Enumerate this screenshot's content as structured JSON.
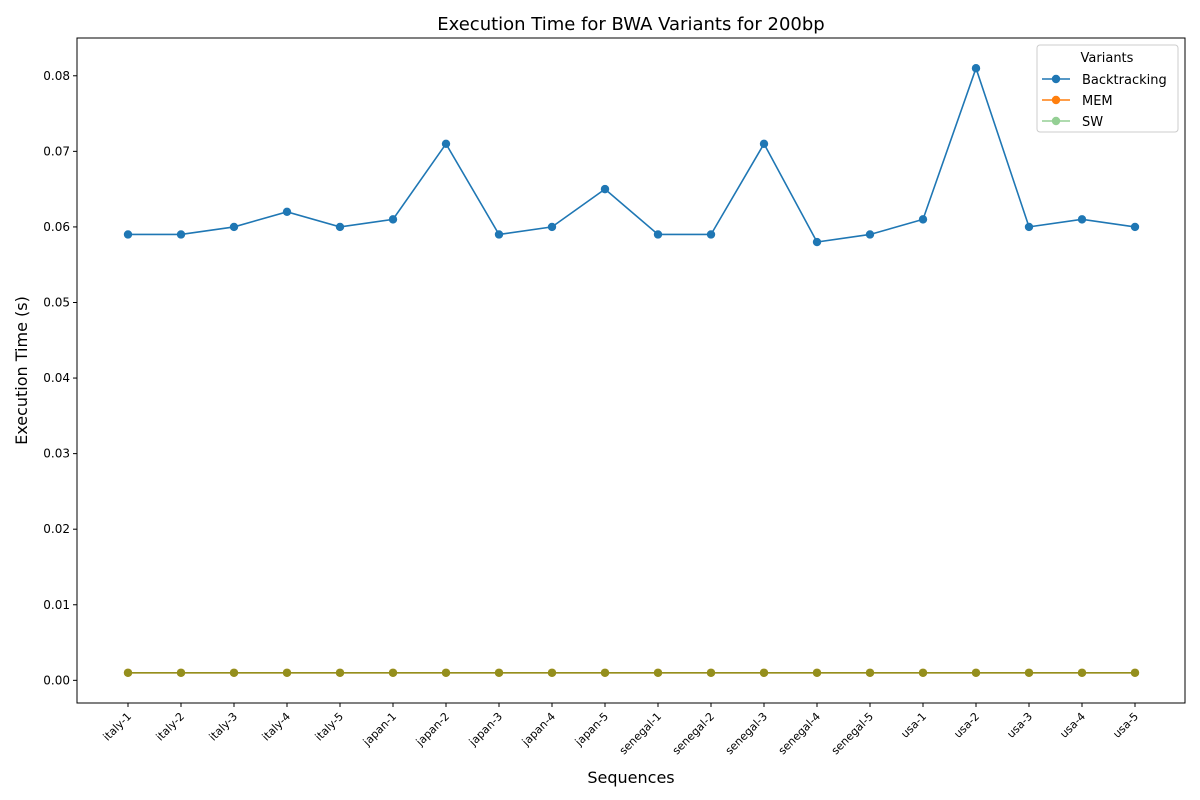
{
  "chart_data": {
    "type": "line",
    "title": "Execution Time for BWA Variants for 200bp",
    "xlabel": "Sequences",
    "ylabel": "Execution Time (s)",
    "ylim": [
      -0.003,
      0.085
    ],
    "yticks": [
      "0.00",
      "0.01",
      "0.02",
      "0.03",
      "0.04",
      "0.05",
      "0.06",
      "0.07",
      "0.08"
    ],
    "grid": false,
    "legend": {
      "title": "Variants",
      "placement": "top-right"
    },
    "categories": [
      "italy-1",
      "italy-2",
      "italy-3",
      "italy-4",
      "italy-5",
      "japan-1",
      "japan-2",
      "japan-3",
      "japan-4",
      "japan-5",
      "senegal-1",
      "senegal-2",
      "senegal-3",
      "senegal-4",
      "senegal-5",
      "usa-1",
      "usa-2",
      "usa-3",
      "usa-4",
      "usa-5"
    ],
    "series": [
      {
        "name": "Backtracking",
        "color": "#1f77b4",
        "opacity": 1,
        "values": [
          0.059,
          0.059,
          0.06,
          0.062,
          0.06,
          0.061,
          0.071,
          0.059,
          0.06,
          0.065,
          0.059,
          0.059,
          0.071,
          0.058,
          0.059,
          0.061,
          0.081,
          0.06,
          0.061,
          0.06
        ]
      },
      {
        "name": "MEM",
        "color": "#ff7f0e",
        "opacity": 1,
        "values": [
          0.001,
          0.001,
          0.001,
          0.001,
          0.001,
          0.001,
          0.001,
          0.001,
          0.001,
          0.001,
          0.001,
          0.001,
          0.001,
          0.001,
          0.001,
          0.001,
          0.001,
          0.001,
          0.001,
          0.001
        ]
      },
      {
        "name": "SW",
        "color": "#2ca02c",
        "opacity": 0.5,
        "values": [
          0.001,
          0.001,
          0.001,
          0.001,
          0.001,
          0.001,
          0.001,
          0.001,
          0.001,
          0.001,
          0.001,
          0.001,
          0.001,
          0.001,
          0.001,
          0.001,
          0.001,
          0.001,
          0.001,
          0.001
        ]
      }
    ]
  }
}
